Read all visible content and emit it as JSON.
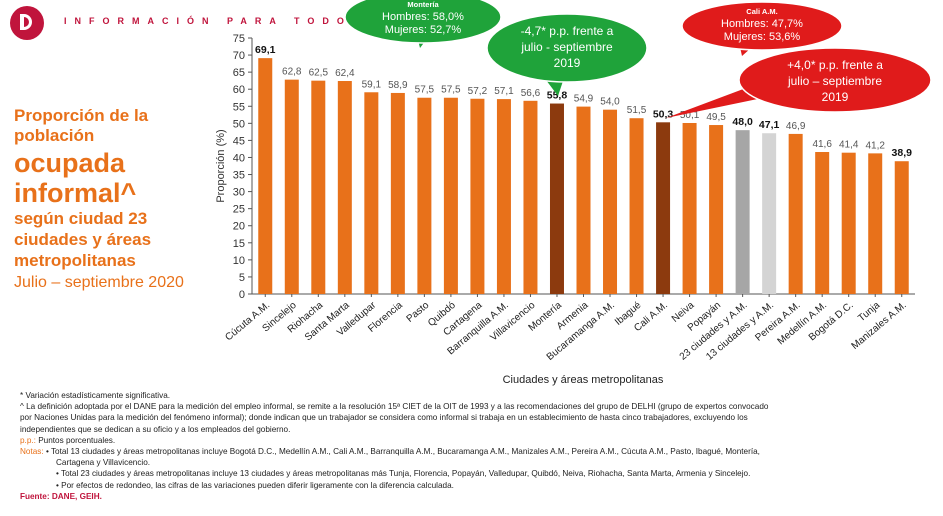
{
  "header": {
    "tagline": "INFORMACIÓN PARA TODOS",
    "brand_color": "#c0143c"
  },
  "left_title": {
    "line1": "Proporción de la población",
    "line2": "ocupada informal^",
    "line3": "según ciudad 23 ciudades y áreas metropolitanas",
    "line4": "Julio – septiembre 2020"
  },
  "chart_data": {
    "type": "bar",
    "ylabel": "Proporción (%)",
    "xlabel": "Ciudades y áreas metropolitanas",
    "ylim": [
      0,
      75
    ],
    "yticks": [
      0,
      5,
      10,
      15,
      20,
      25,
      30,
      35,
      40,
      45,
      50,
      55,
      60,
      65,
      70,
      75
    ],
    "categories": [
      "Cúcuta A.M.",
      "Sincelejo",
      "Riohacha",
      "Santa Marta",
      "Valledupar",
      "Florencia",
      "Pasto",
      "Quibdó",
      "Cartagena",
      "Barranquilla A.M.",
      "Villavicencio",
      "Montería",
      "Armenia",
      "Bucaramanga A.M.",
      "Ibagué",
      "Cali A.M.",
      "Neiva",
      "Popayán",
      "23 ciudades y A.M.",
      "13 ciudades y A.M.",
      "Pereira A.M.",
      "Medellín A.M.",
      "Bogotá D.C.",
      "Tunja",
      "Manizales A.M."
    ],
    "values": [
      69.1,
      62.8,
      62.5,
      62.4,
      59.1,
      58.9,
      57.5,
      57.5,
      57.2,
      57.1,
      56.6,
      55.8,
      54.9,
      54.0,
      51.5,
      50.3,
      50.1,
      49.5,
      48.0,
      47.1,
      46.9,
      41.6,
      41.4,
      41.2,
      38.9
    ],
    "value_labels": [
      "69,1",
      "62,8",
      "62,5",
      "62,4",
      "59,1",
      "58,9",
      "57,5",
      "57,5",
      "57,2",
      "57,1",
      "56,6",
      "55,8",
      "54,9",
      "54,0",
      "51,5",
      "50,3",
      "50,1",
      "49,5",
      "48,0",
      "47,1",
      "46,9",
      "41,6",
      "41,4",
      "41,2",
      "38,9"
    ],
    "bold_labels": [
      true,
      false,
      false,
      false,
      false,
      false,
      false,
      false,
      false,
      false,
      false,
      true,
      false,
      false,
      false,
      true,
      false,
      false,
      true,
      true,
      false,
      false,
      false,
      false,
      true
    ],
    "bar_colors": [
      "#e8711a",
      "#e8711a",
      "#e8711a",
      "#e8711a",
      "#e8711a",
      "#e8711a",
      "#e8711a",
      "#e8711a",
      "#e8711a",
      "#e8711a",
      "#e8711a",
      "#8c3a0e",
      "#e8711a",
      "#e8711a",
      "#e8711a",
      "#8c3a0e",
      "#e8711a",
      "#e8711a",
      "#a6a6a6",
      "#d4d4d4",
      "#e8711a",
      "#e8711a",
      "#e8711a",
      "#e8711a",
      "#e8711a"
    ],
    "grid": false
  },
  "callouts": {
    "monteria_box": {
      "title": "Montería",
      "line1": "Hombres: 58,0%",
      "line2": "Mujeres: 52,7%",
      "color": "#1fa33a"
    },
    "monteria_change": {
      "line1": "-4,7* p.p. frente a",
      "line2": "julio - septiembre",
      "line3": "2019",
      "color": "#1fa33a"
    },
    "cali_box": {
      "title": "Cali A.M.",
      "line1": "Hombres: 47,7%",
      "line2": "Mujeres: 53,6%",
      "color": "#e01b1b"
    },
    "cali_change": {
      "line1": "+4,0* p.p. frente a",
      "line2": "julio – septiembre",
      "line3": "2019",
      "color": "#e01b1b"
    }
  },
  "notes": {
    "n1": "* Variación estadísticamente significativa.",
    "n2a": "^ La definición adoptada por el DANE para la medición del empleo informal, se remite a la resolución 15ª CIET de la OIT de 1993 y a las recomendaciones del grupo de DELHI (grupo de expertos convocado",
    "n2b": "por Naciones Unidas para la medición del fenómeno informal); donde indican que un trabajador se considera como informal si trabaja en un establecimiento de hasta cinco trabajadores, excluyendo los",
    "n2c": "independientes que se dedican a su oficio y a los empleados del gobierno.",
    "pp_label": "p.p.:",
    "pp_text": " Puntos porcentuales.",
    "notas_label": "Notas:",
    "b1a": " • Total 13 ciudades y áreas metropolitanas incluye Bogotá D.C., Medellín A.M., Cali A.M., Barranquilla A.M., Bucaramanga A.M., Manizales A.M., Pereira A.M., Cúcuta A.M., Pasto, Ibagué, Montería,",
    "b1b": "Cartagena y Villavicencio.",
    "b2": "• Total 23 ciudades y áreas metropolitanas incluye 13 ciudades y áreas metropolitanas más Tunja, Florencia, Popayán, Valledupar, Quibdó, Neiva, Riohacha, Santa Marta, Armenia y Sincelejo.",
    "b3": "• Por efectos de redondeo, las cifras de las variaciones pueden diferir ligeramente con la diferencia calculada.",
    "source": "Fuente: DANE, GEIH."
  }
}
